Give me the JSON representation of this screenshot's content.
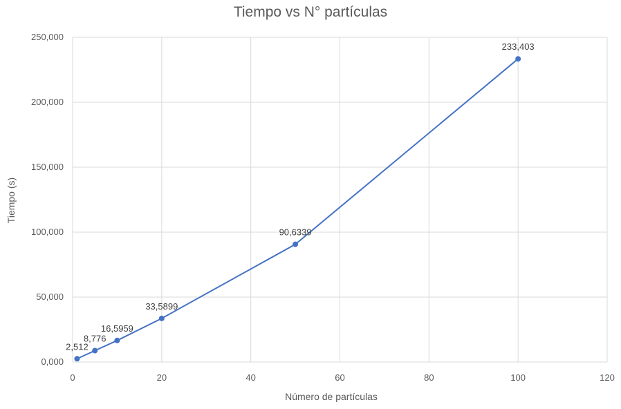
{
  "chart_data": {
    "type": "line",
    "title": "Tiempo vs N° partículas",
    "xlabel": "Número de partículas",
    "ylabel": "Tiempo (s)",
    "xlim": [
      0,
      120
    ],
    "ylim": [
      0,
      250
    ],
    "x_ticks": [
      0,
      20,
      40,
      60,
      80,
      100,
      120
    ],
    "x_tick_labels": [
      "0",
      "20",
      "40",
      "60",
      "80",
      "100",
      "120"
    ],
    "y_ticks": [
      0,
      50,
      100,
      150,
      200,
      250
    ],
    "y_tick_labels": [
      "0,000",
      "50,000",
      "100,000",
      "150,000",
      "200,000",
      "250,000"
    ],
    "grid": true,
    "legend": "none",
    "color": "#4472C4",
    "series": [
      {
        "x": [
          1,
          5,
          10,
          20,
          50,
          100
        ],
        "y": [
          2.512,
          8.776,
          16.5959,
          33.5899,
          90.6339,
          233.403
        ],
        "labels": [
          "2,512",
          "8,776",
          "16,5959",
          "33,5899",
          "90,6339",
          "233,403"
        ]
      }
    ]
  }
}
